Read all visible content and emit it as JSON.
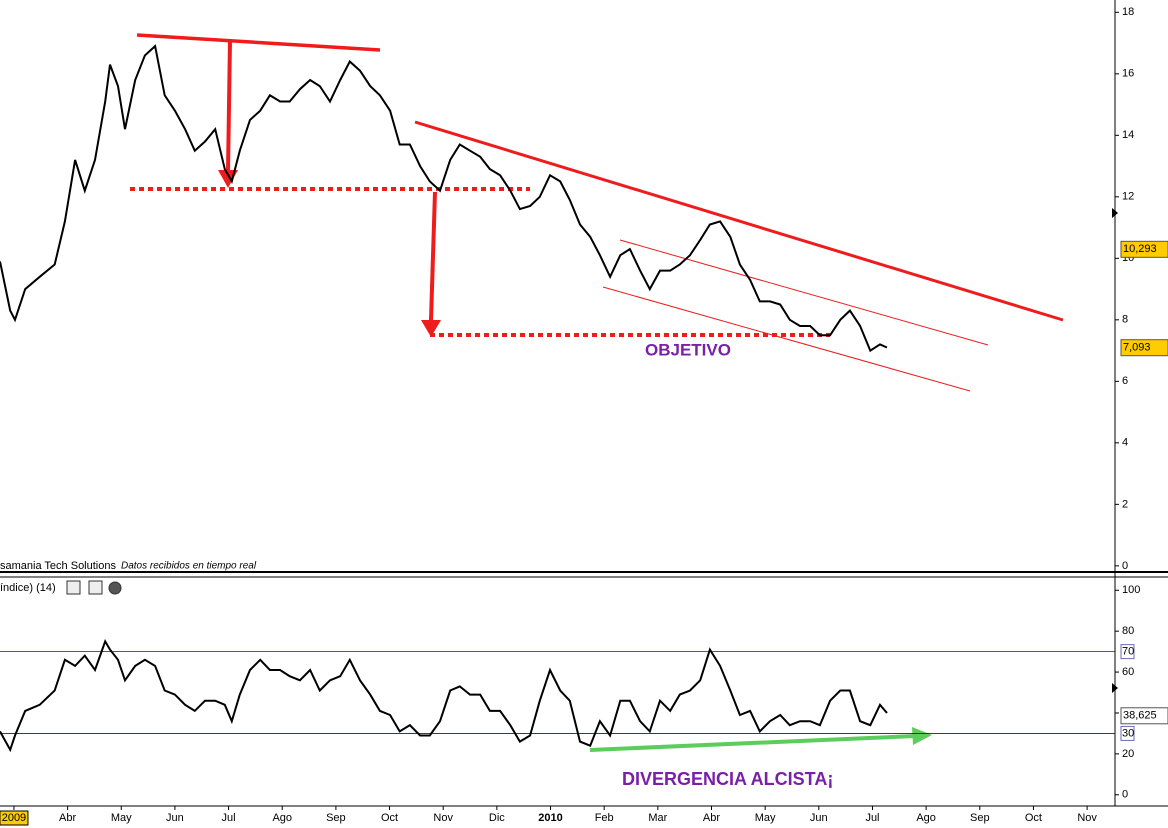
{
  "chart_data": [
    {
      "type": "line",
      "source": "samania Tech Solutions",
      "note": "Datos recibidos en tiempo real",
      "annotation": "OBJETIVO",
      "xlim": [
        -0.26,
        20.52
      ],
      "ylim": [
        -0.2,
        18.4
      ],
      "yticks": [
        0,
        2,
        4,
        6,
        8,
        10,
        12,
        14,
        16,
        18
      ],
      "markers": [
        {
          "value": 10.293,
          "label": "10,293"
        },
        {
          "value": 7.093,
          "label": "7,093"
        }
      ],
      "x": [
        -0.26,
        -0.07,
        0.02,
        0.21,
        0.48,
        0.76,
        0.95,
        1.14,
        1.32,
        1.51,
        1.7,
        1.79,
        1.94,
        2.07,
        2.26,
        2.44,
        2.63,
        2.81,
        3.0,
        3.19,
        3.37,
        3.56,
        3.75,
        3.93,
        4.06,
        4.21,
        4.4,
        4.59,
        4.77,
        4.96,
        5.14,
        5.33,
        5.52,
        5.7,
        5.89,
        6.08,
        6.26,
        6.45,
        6.64,
        6.82,
        7.01,
        7.19,
        7.38,
        7.57,
        7.75,
        7.94,
        8.13,
        8.31,
        8.5,
        8.69,
        8.87,
        9.06,
        9.25,
        9.43,
        9.62,
        9.8,
        9.99,
        10.18,
        10.36,
        10.55,
        10.74,
        10.92,
        11.11,
        11.3,
        11.48,
        11.67,
        11.85,
        12.04,
        12.23,
        12.41,
        12.6,
        12.79,
        12.97,
        13.16,
        13.35,
        13.53,
        13.72,
        13.9,
        14.09,
        14.28,
        14.46,
        14.65,
        14.84,
        15.02,
        15.21,
        15.4,
        15.58,
        15.77,
        15.96,
        16.14,
        16.27
      ],
      "series": [
        {
          "color": "#000000",
          "values": [
            9.9,
            8.3,
            8.0,
            9.0,
            9.4,
            9.8,
            11.2,
            13.2,
            12.2,
            13.2,
            15.1,
            16.3,
            15.6,
            14.2,
            15.8,
            16.6,
            16.9,
            15.3,
            14.8,
            14.2,
            13.5,
            13.8,
            14.2,
            12.9,
            12.5,
            13.5,
            14.5,
            14.8,
            15.3,
            15.1,
            15.1,
            15.5,
            15.8,
            15.6,
            15.1,
            15.8,
            16.4,
            16.1,
            15.6,
            15.3,
            14.8,
            13.7,
            13.7,
            13.0,
            12.5,
            12.2,
            13.2,
            13.7,
            13.5,
            13.3,
            12.9,
            12.7,
            12.2,
            11.6,
            11.7,
            12.0,
            12.7,
            12.5,
            11.9,
            11.1,
            10.7,
            10.1,
            9.4,
            10.1,
            10.3,
            9.6,
            9.0,
            9.6,
            9.6,
            9.8,
            10.1,
            10.6,
            11.1,
            11.2,
            10.7,
            9.8,
            9.3,
            8.6,
            8.6,
            8.5,
            8.0,
            7.8,
            7.8,
            7.5,
            7.5,
            8.0,
            8.3,
            7.8,
            7.0,
            7.2,
            7.1
          ]
        }
      ]
    },
    {
      "type": "line",
      "title": "índice) (14)",
      "annotation": "DIVERGENCIA ALCISTA¡",
      "xlim": [
        -0.26,
        20.52
      ],
      "ylim": [
        -5,
        106
      ],
      "yticks": [
        0,
        20,
        40,
        60,
        80,
        100
      ],
      "hlines": [
        70,
        30
      ],
      "markers": [
        {
          "value": 38.625,
          "label": "38,625"
        }
      ],
      "xticks": [
        {
          "value": 0,
          "label": "2009"
        },
        {
          "value": 1,
          "label": "Abr"
        },
        {
          "value": 2,
          "label": "May"
        },
        {
          "value": 3,
          "label": "Jun"
        },
        {
          "value": 4,
          "label": "Jul"
        },
        {
          "value": 5,
          "label": "Ago"
        },
        {
          "value": 6,
          "label": "Sep"
        },
        {
          "value": 7,
          "label": "Oct"
        },
        {
          "value": 8,
          "label": "Nov"
        },
        {
          "value": 9,
          "label": "Dic"
        },
        {
          "value": 10,
          "label": "2010"
        },
        {
          "value": 11,
          "label": "Feb"
        },
        {
          "value": 12,
          "label": "Mar"
        },
        {
          "value": 13,
          "label": "Abr"
        },
        {
          "value": 14,
          "label": "May"
        },
        {
          "value": 15,
          "label": "Jun"
        },
        {
          "value": 16,
          "label": "Jul"
        },
        {
          "value": 17,
          "label": "Ago"
        },
        {
          "value": 18,
          "label": "Sep"
        },
        {
          "value": 19,
          "label": "Oct"
        },
        {
          "value": 20,
          "label": "Nov"
        }
      ],
      "x": [
        -0.26,
        -0.07,
        0.02,
        0.21,
        0.48,
        0.76,
        0.95,
        1.14,
        1.32,
        1.51,
        1.7,
        1.79,
        1.94,
        2.07,
        2.26,
        2.44,
        2.63,
        2.81,
        3.0,
        3.19,
        3.37,
        3.56,
        3.75,
        3.93,
        4.06,
        4.21,
        4.4,
        4.59,
        4.77,
        4.96,
        5.14,
        5.33,
        5.52,
        5.7,
        5.89,
        6.08,
        6.26,
        6.45,
        6.64,
        6.82,
        7.01,
        7.19,
        7.38,
        7.57,
        7.75,
        7.94,
        8.13,
        8.31,
        8.5,
        8.69,
        8.87,
        9.06,
        9.25,
        9.43,
        9.62,
        9.8,
        9.99,
        10.18,
        10.36,
        10.55,
        10.74,
        10.92,
        11.11,
        11.3,
        11.48,
        11.67,
        11.85,
        12.04,
        12.23,
        12.41,
        12.6,
        12.79,
        12.97,
        13.16,
        13.35,
        13.53,
        13.72,
        13.9,
        14.09,
        14.28,
        14.46,
        14.65,
        14.84,
        15.02,
        15.21,
        15.4,
        15.58,
        15.77,
        15.96,
        16.14,
        16.27
      ],
      "series": [
        {
          "color": "#000000",
          "values": [
            31,
            22,
            29,
            41,
            44,
            51,
            66,
            63,
            68,
            61,
            75,
            71,
            66,
            56,
            63,
            66,
            63,
            51,
            49,
            44,
            41,
            46,
            46,
            44,
            36,
            49,
            61,
            66,
            61,
            61,
            58,
            56,
            61,
            51,
            56,
            58,
            66,
            56,
            49,
            41,
            39,
            31,
            34,
            29,
            29,
            36,
            51,
            53,
            49,
            49,
            41,
            41,
            34,
            26,
            29,
            46,
            61,
            51,
            46,
            26,
            24,
            36,
            29,
            46,
            46,
            36,
            31,
            46,
            41,
            49,
            51,
            56,
            71,
            63,
            51,
            39,
            41,
            31,
            36,
            39,
            34,
            36,
            36,
            34,
            46,
            51,
            51,
            36,
            34,
            44,
            40
          ]
        }
      ]
    }
  ]
}
